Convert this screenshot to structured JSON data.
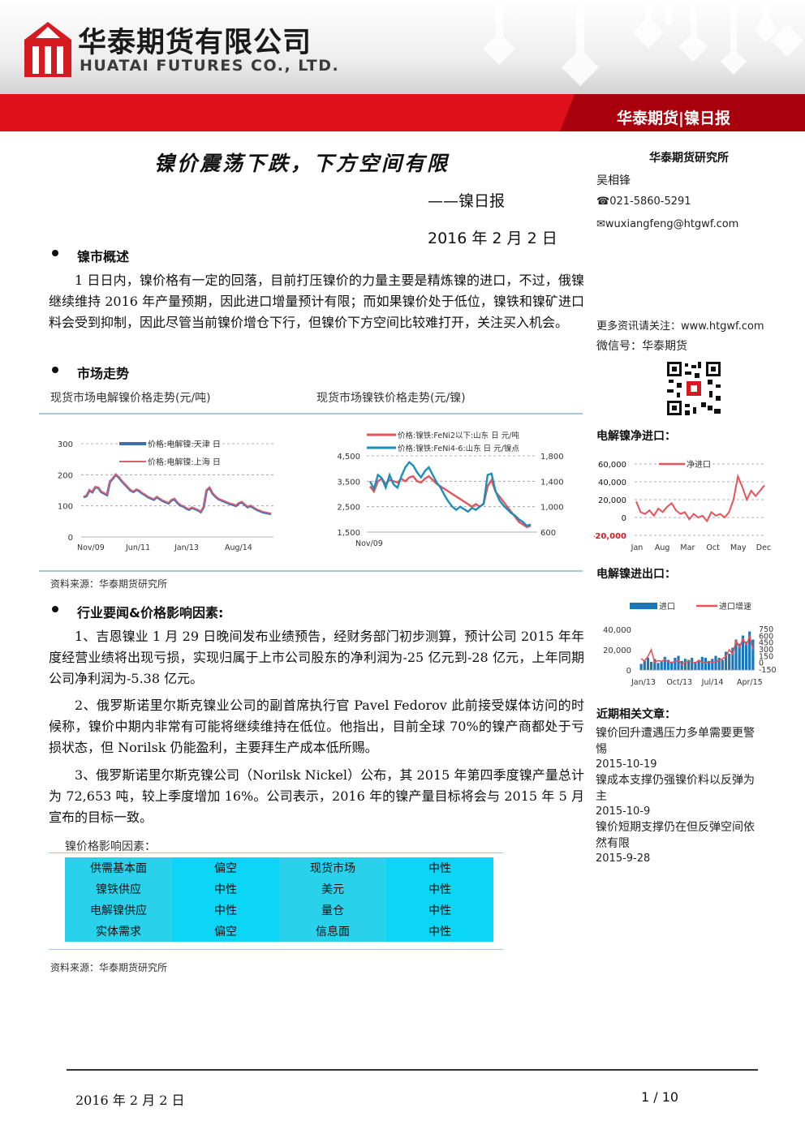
{
  "header": {
    "company_cn": "华泰期货有限公司",
    "company_en": "HUATAI FUTURES CO., LTD.",
    "tagline": "华泰期货|镍日报"
  },
  "report": {
    "title": "镍价震荡下跌，下方空间有限",
    "subtitle": "——镍日报",
    "date": "2016 年 2 月 2 日"
  },
  "sidebar": {
    "institute": "华泰期货研究所",
    "analyst": "吴相锋",
    "phone": "☎021-5860-5291",
    "email": "✉wuxiangfeng@htgwf.com",
    "more_info": "更多资讯请关注：www.htgwf.com",
    "wechat": "微信号：华泰期货",
    "related_title": "近期相关文章：",
    "articles": [
      {
        "title": "镍价回升遭遇压力多单需要更警惕",
        "date": "2015-10-19"
      },
      {
        "title": "镍成本支撑仍强镍价料以反弹为主",
        "date": "2015-10-9"
      },
      {
        "title": "镍价短期支撑仍在但反弹空间依然有限",
        "date": "2015-9-28"
      }
    ]
  },
  "sections": {
    "overview_title": "镍市概述",
    "overview_text": "1 日日内，镍价格有一定的回落，目前打压镍价的力量主要是精炼镍的进口，不过，俄镍继续维持 2016 年产量预期，因此进口增量预计有限；而如果镍价处于低位，镍铁和镍矿进口料会受到抑制，因此尽管当前镍价增仓下行，但镍价下方空间比较难打开，关注买入机会。",
    "market_title": "市场走势",
    "chart1_caption": "现货市场电解镍价格走势(元/吨)",
    "chart2_caption": "现货市场镍铁价格走势(元/镍)",
    "source1": "资料来源：华泰期货研究所",
    "news_title": "行业要闻&价格影响因素:",
    "news": [
      "1、吉恩镍业 1 月 29 日晚间发布业绩预告，经财务部门初步测算，预计公司 2015 年年度经营业绩将出现亏损，实现归属于上市公司股东的净利润为-25 亿元到-28 亿元，上年同期公司净利润为-5.38 亿元。",
      "2、俄罗斯诺里尔斯克镍业公司的副首席执行官 Pavel Fedorov 此前接受媒体访问的时候称，镍价中期内非常有可能将继续维持在低位。他指出，目前全球 70%的镍产商都处于亏损状态，但 Norilsk 仍能盈利，主要拜生产成本低所赐。",
      "3、俄罗斯诺里尔斯克镍公司（Norilsk Nickel）公布，其 2015 年第四季度镍产量总计为 72,653 吨，较上季度增加 16%。公司表示，2016 年的镍产量目标将会与 2015 年 5 月宣布的目标一致。"
    ],
    "factors_title": "镍价格影响因素：",
    "factors": [
      [
        "供需基本面",
        "偏空",
        "现货市场",
        "中性"
      ],
      [
        "镍铁供应",
        "中性",
        "美元",
        "中性"
      ],
      [
        "电解镍供应",
        "中性",
        "量仓",
        "中性"
      ],
      [
        "实体需求",
        "偏空",
        "信息面",
        "中性"
      ]
    ],
    "source2": "资料来源：华泰期货研究所"
  },
  "footer": {
    "date": "2016 年 2 月 2 日",
    "page": "1 / 10"
  },
  "chart_data": [
    {
      "type": "line",
      "legend": [
        "价格:电解镍:天津 日",
        "价格:电解镍:上海 日"
      ],
      "yticks": [
        "300",
        "200",
        "100",
        "0"
      ],
      "xticks": [
        "Nov/09",
        "Jun/11",
        "Jan/13",
        "Aug/14"
      ],
      "ylim": [
        0,
        300
      ],
      "series": [
        {
          "name": "价格:电解镍:天津 日",
          "color": "#3f6fb5",
          "values": [
            128,
            132,
            150,
            144,
            160,
            158,
            145,
            140,
            135,
            178,
            188,
            200,
            192,
            180,
            170,
            160,
            150,
            145,
            152,
            148,
            140,
            135,
            128,
            124,
            120,
            128,
            122,
            116,
            112,
            108,
            118,
            122,
            110,
            102,
            98,
            92,
            88,
            94,
            90,
            86,
            80,
            96,
            150,
            158,
            140,
            130,
            122,
            118,
            114,
            110,
            106,
            104,
            100,
            108,
            112,
            104,
            96,
            100,
            94,
            88,
            84,
            80,
            78,
            76,
            74
          ]
        },
        {
          "name": "价格:电解镍:上海 日",
          "color": "#e0606e",
          "values": [
            130,
            134,
            152,
            146,
            162,
            160,
            147,
            142,
            137,
            180,
            190,
            202,
            194,
            182,
            172,
            162,
            152,
            147,
            154,
            150,
            142,
            137,
            130,
            126,
            122,
            130,
            124,
            118,
            114,
            110,
            120,
            124,
            112,
            104,
            100,
            94,
            90,
            96,
            92,
            88,
            82,
            98,
            152,
            160,
            142,
            132,
            124,
            120,
            116,
            112,
            108,
            106,
            102,
            110,
            114,
            106,
            98,
            102,
            96,
            90,
            86,
            82,
            80,
            78,
            76
          ]
        }
      ]
    },
    {
      "type": "line",
      "legend": [
        "价格:镍铁:FeNi2以下:山东 日 元/吨",
        "价格:镍铁:FeNi4-6:山东 日 元/镍点"
      ],
      "yticks_left": [
        "4,500",
        "3,500",
        "2,500",
        "1,500"
      ],
      "yticks_right": [
        "1,800",
        "1,400",
        "1,000",
        "600"
      ],
      "xticks": [
        "Nov/09"
      ],
      "ylim_left": [
        1500,
        4500
      ],
      "series": [
        {
          "name": "价格:镍铁:FeNi2以下:山东 日 元/吨",
          "color": "#e8535a",
          "axis": "left",
          "values": [
            3300,
            3100,
            3500,
            3600,
            3400,
            3550,
            3500,
            3450,
            3600,
            3500,
            3650,
            3700,
            3500,
            3450,
            3600,
            3700,
            3550,
            3400,
            3300,
            3200,
            3100,
            3000,
            2900,
            2800,
            2700,
            2600,
            2500,
            2600,
            2500,
            2600,
            3300,
            3550,
            3100,
            2900,
            2700,
            2500,
            2300,
            2100,
            1900,
            1800,
            1700,
            1750
          ]
        },
        {
          "name": "价格:镍铁:FeNi4-6:山东 日 元/镍点",
          "color": "#1b8fba",
          "axis": "right",
          "values": [
            1400,
            1280,
            1500,
            1450,
            1300,
            1500,
            1350,
            1300,
            1480,
            1620,
            1700,
            1650,
            1540,
            1460,
            1560,
            1620,
            1500,
            1380,
            1300,
            1180,
            1080,
            1000,
            950,
            1000,
            960,
            920,
            980,
            950,
            1000,
            1050,
            1500,
            1520,
            1250,
            1100,
            1020,
            960,
            900,
            860,
            800,
            760,
            700,
            720
          ]
        }
      ]
    },
    {
      "type": "line",
      "title": "电解镍净进口：",
      "legend": [
        "净进口"
      ],
      "yticks": [
        "60,000",
        "40,000",
        "20,000",
        "0",
        "-20,000"
      ],
      "xticks": [
        "Jan",
        "Aug",
        "Mar",
        "Oct",
        "May",
        "Dec"
      ],
      "ylim": [
        -20000,
        60000
      ],
      "series": [
        {
          "name": "净进口",
          "color": "#e8535a",
          "values": [
            18000,
            6000,
            4000,
            8000,
            2000,
            10000,
            6000,
            12000,
            16000,
            8000,
            4000,
            6000,
            -2000,
            4000,
            0,
            2000,
            -4000,
            6000,
            2000,
            4000,
            0,
            6000,
            20000,
            46000,
            34000,
            20000,
            30000,
            24000,
            30000,
            36000
          ]
        }
      ]
    },
    {
      "type": "bar",
      "title": "电解镍进出口：",
      "legend": [
        "进口",
        "进口增速"
      ],
      "yticks_left": [
        "40,000",
        "20,000",
        "0"
      ],
      "yticks_right": [
        "750",
        "600",
        "450",
        "300",
        "150",
        "0",
        "-150"
      ],
      "xticks": [
        "Jan/13",
        "Oct/13",
        "Jul/14",
        "Apr/15"
      ],
      "ylim_left": [
        0,
        40000
      ],
      "series": [
        {
          "name": "进口",
          "color": "#1b78b8",
          "type": "bar",
          "values": [
            6000,
            9000,
            12000,
            8000,
            11000,
            7000,
            9000,
            13000,
            10000,
            8000,
            12000,
            14000,
            9000,
            11000,
            10000,
            12000,
            8000,
            10000,
            13000,
            12000,
            9000,
            11000,
            14000,
            12000,
            10000,
            18000,
            16000,
            22000,
            30000,
            26000,
            34000,
            28000,
            38000,
            30000
          ]
        },
        {
          "name": "进口增速",
          "color": "#e8535a",
          "type": "line",
          "values": [
            100,
            50,
            150,
            300,
            20,
            60,
            40,
            80,
            30,
            20,
            40,
            60,
            -20,
            20,
            40,
            30,
            10,
            60,
            20,
            0,
            40,
            20,
            30,
            60,
            100,
            150,
            300,
            200,
            500,
            350,
            550,
            400,
            600,
            300
          ]
        }
      ]
    }
  ]
}
